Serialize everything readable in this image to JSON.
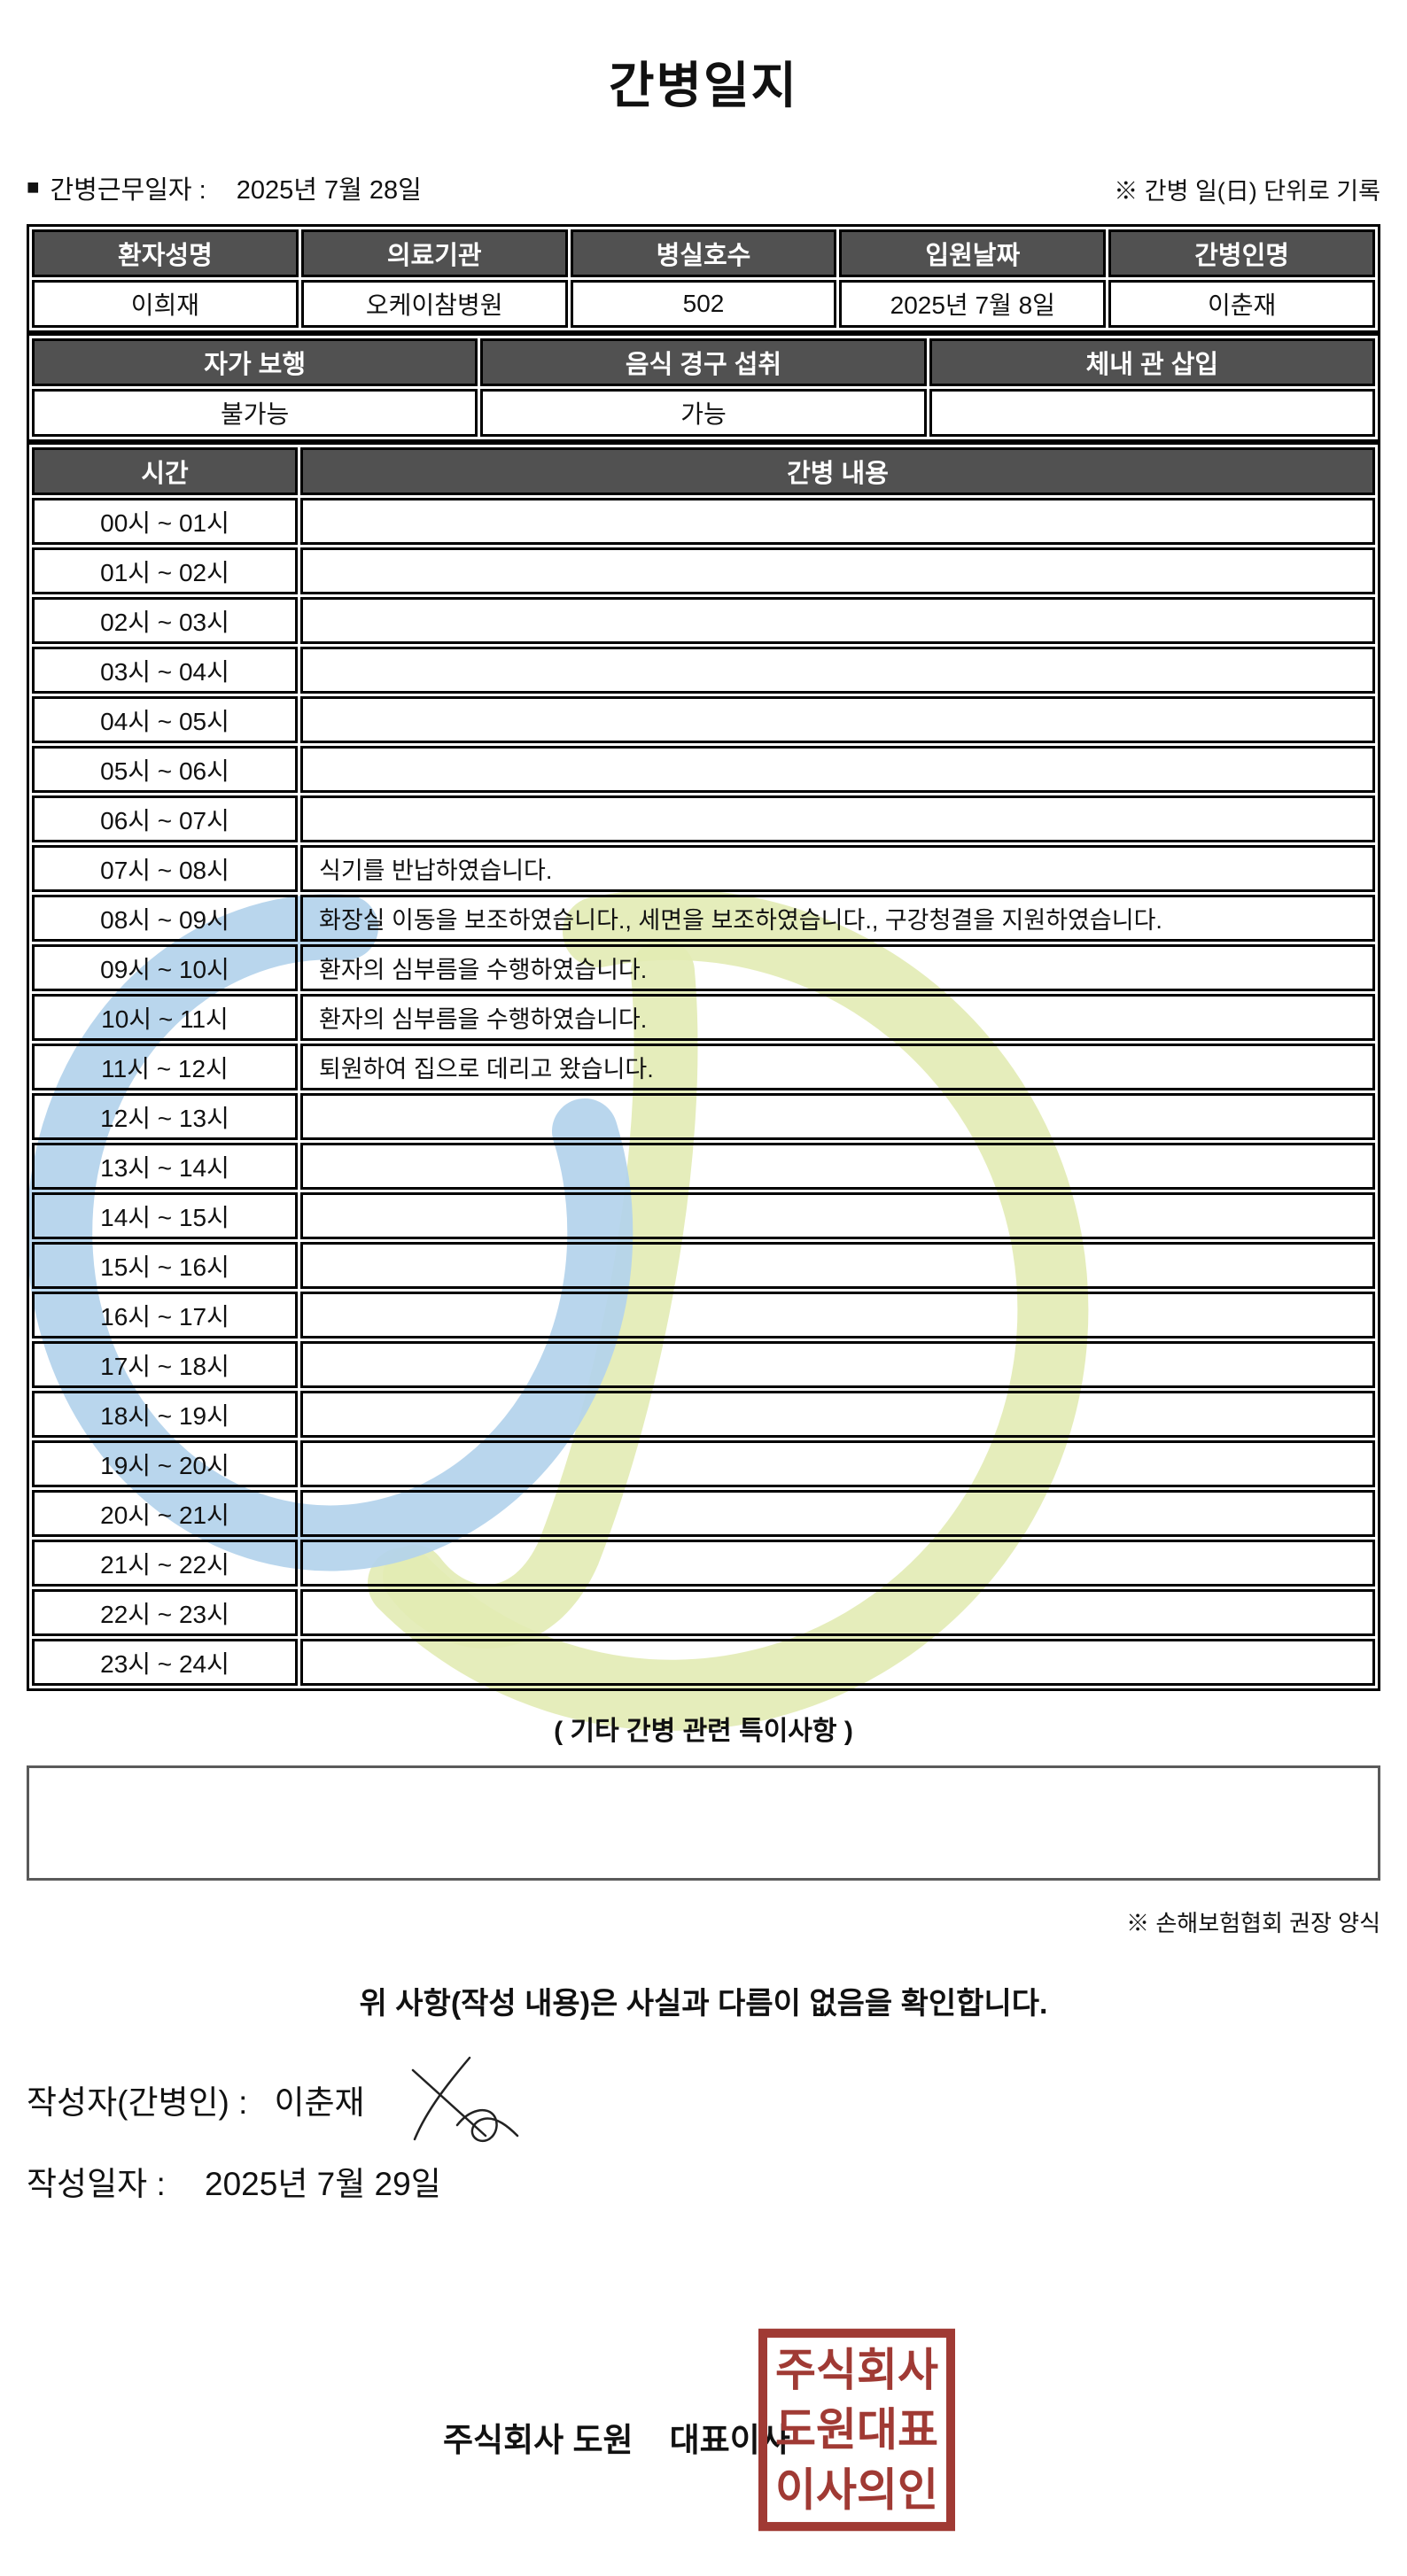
{
  "page": {
    "title": "간병일지"
  },
  "meta": {
    "bullet": "■",
    "work_date_label": "간병근무일자  :",
    "work_date_value": "2025년 7월 28일",
    "unit_note": "※ 간병 일(日) 단위로 기록"
  },
  "patient_table": {
    "headers": [
      "환자성명",
      "의료기관",
      "병실호수",
      "입원날짜",
      "간병인명"
    ],
    "values": [
      "이희재",
      "오케이참병원",
      "502",
      "2025년 7월 8일",
      "이춘재"
    ]
  },
  "condition_table": {
    "headers": [
      "자가 보행",
      "음식 경구 섭취",
      "체내 관 삽입"
    ],
    "values": [
      "불가능",
      "가능",
      ""
    ]
  },
  "care_log": {
    "headers": {
      "time": "시간",
      "content": "간병 내용"
    },
    "rows": [
      {
        "time": "00시 ~ 01시",
        "content": ""
      },
      {
        "time": "01시 ~ 02시",
        "content": ""
      },
      {
        "time": "02시 ~ 03시",
        "content": ""
      },
      {
        "time": "03시 ~ 04시",
        "content": ""
      },
      {
        "time": "04시 ~ 05시",
        "content": ""
      },
      {
        "time": "05시 ~ 06시",
        "content": ""
      },
      {
        "time": "06시 ~ 07시",
        "content": ""
      },
      {
        "time": "07시 ~ 08시",
        "content": "식기를 반납하였습니다."
      },
      {
        "time": "08시 ~ 09시",
        "content": "화장실 이동을 보조하였습니다., 세면을 보조하였습니다., 구강청결을 지원하였습니다."
      },
      {
        "time": "09시 ~ 10시",
        "content": "환자의 심부름을 수행하였습니다."
      },
      {
        "time": "10시 ~ 11시",
        "content": "환자의 심부름을 수행하였습니다."
      },
      {
        "time": "11시 ~ 12시",
        "content": "퇴원하여 집으로 데리고 왔습니다."
      },
      {
        "time": "12시 ~ 13시",
        "content": ""
      },
      {
        "time": "13시 ~ 14시",
        "content": ""
      },
      {
        "time": "14시 ~ 15시",
        "content": ""
      },
      {
        "time": "15시 ~ 16시",
        "content": ""
      },
      {
        "time": "16시 ~ 17시",
        "content": ""
      },
      {
        "time": "17시 ~ 18시",
        "content": ""
      },
      {
        "time": "18시 ~ 19시",
        "content": ""
      },
      {
        "time": "19시 ~ 20시",
        "content": ""
      },
      {
        "time": "20시 ~ 21시",
        "content": ""
      },
      {
        "time": "21시 ~ 22시",
        "content": ""
      },
      {
        "time": "22시 ~ 23시",
        "content": ""
      },
      {
        "time": "23시 ~ 24시",
        "content": ""
      }
    ]
  },
  "notes": {
    "heading": "( 기타 간병 관련 특이사항 )",
    "content": "",
    "form_note": "※ 손해보험협회 권장 양식"
  },
  "signoff": {
    "statement": "위 사항(작성 내용)은 사실과 다름이 없음을 확인합니다.",
    "writer_label": "작성자(간병인) :",
    "writer_name": "이춘재",
    "date_label": "작성일자 :",
    "date_value": "2025년 7월 29일",
    "company_line": "주식회사 도원    대표이사",
    "seal_rows": [
      "주식회사",
      "도원대표",
      "이사의인"
    ]
  },
  "colors": {
    "table_header_bg": "#515151",
    "table_header_text": "#ffffff",
    "table_border": "#000000",
    "notes_box_border": "#5a5a5a",
    "seal_red": "#a03a34",
    "watermark_blue": "#b3d3ec",
    "watermark_green_yellow": "#e2ebb4"
  }
}
